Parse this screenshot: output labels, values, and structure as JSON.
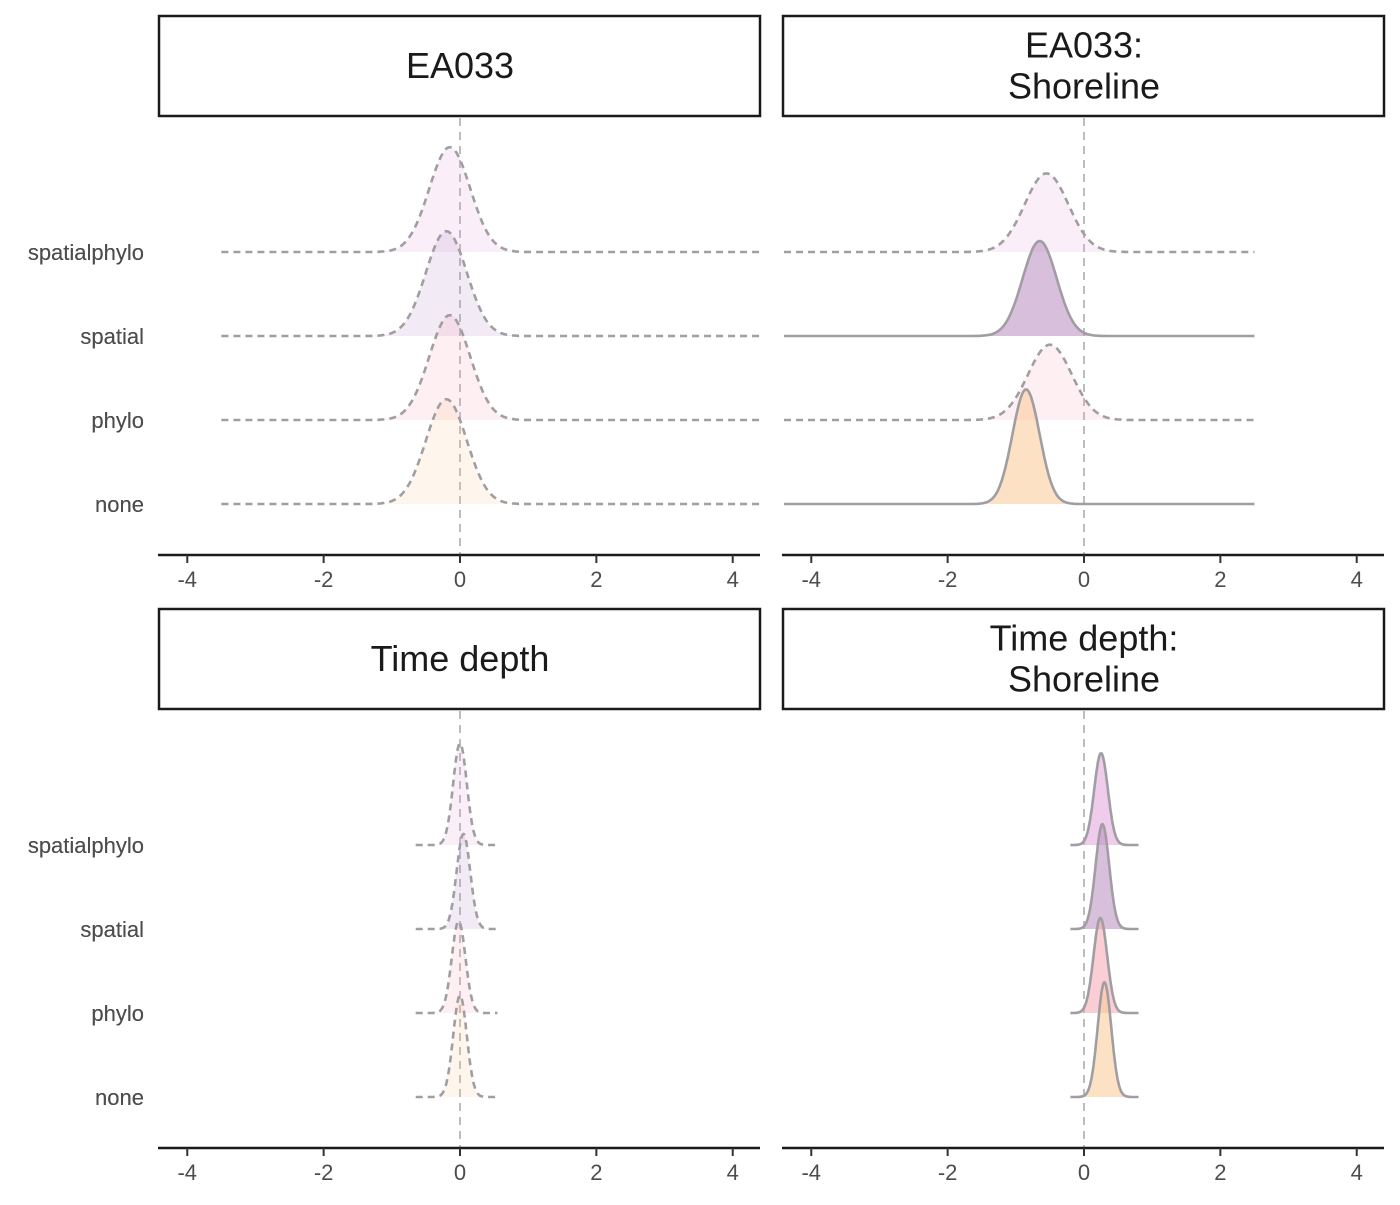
{
  "chart_data": {
    "type": "ridgeline",
    "categories": [
      "spatialphylo",
      "spatial",
      "phylo",
      "none"
    ],
    "xticks": [
      -4,
      -2,
      0,
      2,
      4
    ],
    "xlim": [
      -4.4,
      4.4
    ],
    "colors": {
      "spatialphylo": "#e4a3dc",
      "spatial": "#b88dc0",
      "phylo": "#f8a5b5",
      "none": "#fcc896",
      "curve": "#a09ea2",
      "zero_line": "#bdbdbd"
    },
    "panels": [
      {
        "title_lines": [
          "EA033"
        ],
        "ridges": [
          {
            "category": "spatialphylo",
            "mean": -0.15,
            "sd": 0.3,
            "range": [
              -3.5,
              4.4
            ],
            "dashed": true,
            "height": 1.6
          },
          {
            "category": "spatial",
            "mean": -0.2,
            "sd": 0.3,
            "range": [
              -3.5,
              4.4
            ],
            "dashed": true,
            "height": 1.6
          },
          {
            "category": "phylo",
            "mean": -0.15,
            "sd": 0.3,
            "range": [
              -3.5,
              4.4
            ],
            "dashed": true,
            "height": 1.6
          },
          {
            "category": "none",
            "mean": -0.2,
            "sd": 0.3,
            "range": [
              -3.5,
              4.4
            ],
            "dashed": true,
            "height": 1.6
          }
        ]
      },
      {
        "title_lines": [
          "EA033:",
          "Shoreline"
        ],
        "ridges": [
          {
            "category": "spatialphylo",
            "mean": -0.55,
            "sd": 0.32,
            "range": [
              -4.4,
              2.5
            ],
            "dashed": true,
            "height": 1.2
          },
          {
            "category": "spatial",
            "mean": -0.65,
            "sd": 0.25,
            "range": [
              -4.4,
              2.5
            ],
            "dashed": false,
            "height": 1.45
          },
          {
            "category": "phylo",
            "mean": -0.5,
            "sd": 0.32,
            "range": [
              -4.4,
              2.5
            ],
            "dashed": true,
            "height": 1.15
          },
          {
            "category": "none",
            "mean": -0.85,
            "sd": 0.2,
            "range": [
              -4.4,
              2.5
            ],
            "dashed": false,
            "height": 1.75
          }
        ]
      },
      {
        "title_lines": [
          "Time depth"
        ],
        "ridges": [
          {
            "category": "spatialphylo",
            "mean": 0.0,
            "sd": 0.1,
            "range": [
              -0.65,
              0.55
            ],
            "dashed": true,
            "height": 1.55
          },
          {
            "category": "spatial",
            "mean": 0.05,
            "sd": 0.1,
            "range": [
              -0.65,
              0.55
            ],
            "dashed": true,
            "height": 1.45
          },
          {
            "category": "phylo",
            "mean": -0.02,
            "sd": 0.1,
            "range": [
              -0.65,
              0.55
            ],
            "dashed": true,
            "height": 1.4
          },
          {
            "category": "none",
            "mean": 0.0,
            "sd": 0.1,
            "range": [
              -0.65,
              0.55
            ],
            "dashed": true,
            "height": 1.55
          }
        ]
      },
      {
        "title_lines": [
          "Time depth:",
          "Shoreline"
        ],
        "ridges": [
          {
            "category": "spatialphylo",
            "mean": 0.25,
            "sd": 0.1,
            "range": [
              -0.2,
              0.8
            ],
            "dashed": false,
            "height": 1.4
          },
          {
            "category": "spatial",
            "mean": 0.27,
            "sd": 0.1,
            "range": [
              -0.2,
              0.8
            ],
            "dashed": false,
            "height": 1.6
          },
          {
            "category": "phylo",
            "mean": 0.24,
            "sd": 0.1,
            "range": [
              -0.2,
              0.8
            ],
            "dashed": false,
            "height": 1.45
          },
          {
            "category": "none",
            "mean": 0.3,
            "sd": 0.1,
            "range": [
              -0.2,
              0.8
            ],
            "dashed": false,
            "height": 1.75
          }
        ]
      }
    ]
  }
}
